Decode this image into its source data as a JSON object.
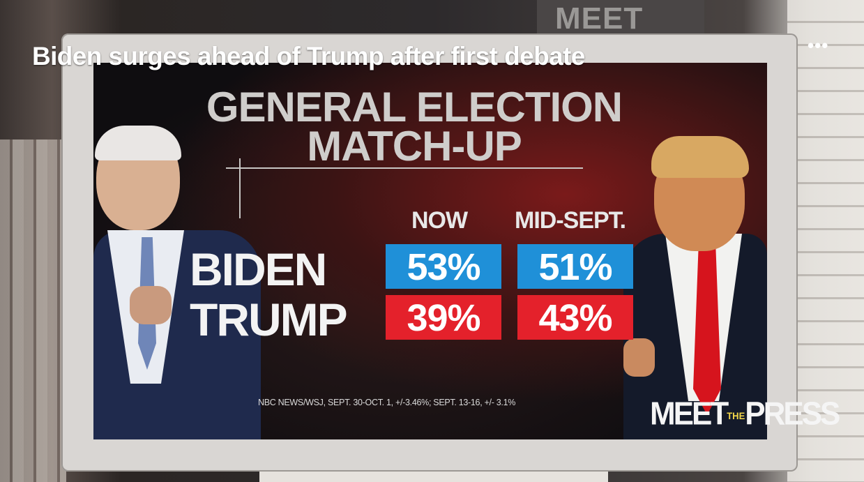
{
  "video": {
    "headline": "Biden surges ahead of Trump after first debate",
    "more_label": "•••",
    "background_sign": "MEET THE"
  },
  "graphic": {
    "title_line1": "GENERAL ELECTION",
    "title_line2": "MATCH-UP",
    "columns": [
      "NOW",
      "MID-SEPT."
    ],
    "rows": [
      {
        "candidate": "BIDEN",
        "now": "53%",
        "mid_sept": "51%",
        "color": "#1f90d8"
      },
      {
        "candidate": "TRUMP",
        "now": "39%",
        "mid_sept": "43%",
        "color": "#e4212b"
      }
    ],
    "source": "NBC NEWS/WSJ, SEPT. 30-OCT. 1, +/-3.46%; SEPT. 13-16, +/- 3.1%",
    "logo_meet": "MEET",
    "logo_the": "THE",
    "logo_press": "PRESS"
  }
}
